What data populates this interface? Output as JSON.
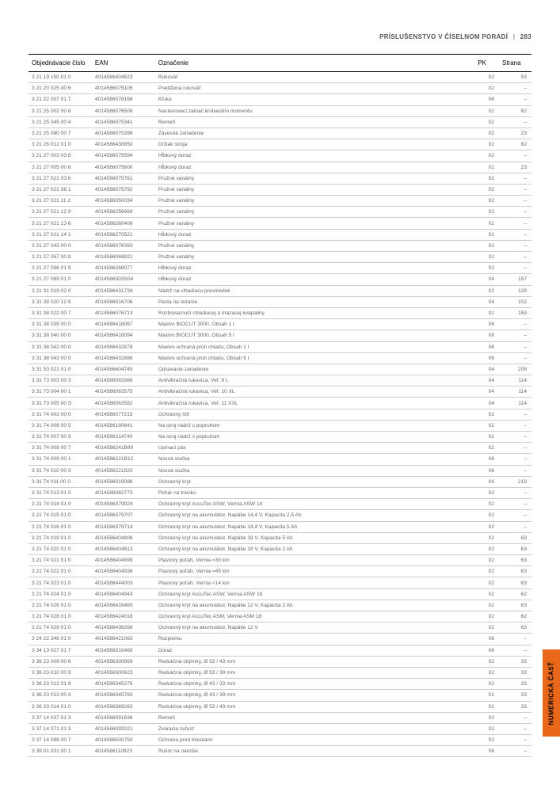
{
  "header": {
    "section": "PRÍSLUŠENSTVO V ČÍSELNOM PORADÍ",
    "divider": "|",
    "page_number": "283"
  },
  "side_tab": {
    "label": "NUMERICKÁ ČASŤ"
  },
  "table": {
    "columns": [
      "Objednávacie číslo",
      "EAN",
      "Označenie",
      "PK",
      "Strana"
    ],
    "rows": [
      [
        "3 21 19 150 01 0",
        "4014586404523",
        "Rukoväť",
        "02",
        "53"
      ],
      [
        "3 21 20 025 00 6",
        "4014586075105",
        "Predlžená rukoväť",
        "02",
        "–"
      ],
      [
        "3 21 22 007 01 7",
        "4014586078168",
        "Kľuka",
        "06",
        "–"
      ],
      [
        "3 21 25 002 00 6",
        "4014586076508",
        "Nastavovací zalnač krútiaceho momentu",
        "02",
        "62"
      ],
      [
        "3 21 25 045 00 4",
        "4014586075341",
        "Remeň",
        "02",
        "–"
      ],
      [
        "3 21 25 080 00 7",
        "4014586075396",
        "Závesné zariadenie",
        "02",
        "23"
      ],
      [
        "3 21 26 012 01 0",
        "4014586430850",
        "Držiak stroja",
        "02",
        "62"
      ],
      [
        "3 21 27 003 03 8",
        "4014586075594",
        "Hĺbkový doraz",
        "02",
        "–"
      ],
      [
        "3 21 27 005 00 6",
        "4014586075600",
        "Hĺbkový doraz",
        "02",
        "23"
      ],
      [
        "3 21 27 021 03 6",
        "4014586075761",
        "Pružné vanálny",
        "02",
        "–"
      ],
      [
        "3 21 27 021 08 1",
        "4014586075792",
        "Pružné vanálny",
        "02",
        "–"
      ],
      [
        "3 21 27 021 11 2",
        "4014586050034",
        "Pružné vanálny",
        "02",
        "–"
      ],
      [
        "3 21 27 021 12 9",
        "4014586256969",
        "Pružné vanálny",
        "02",
        "–"
      ],
      [
        "3 21 27 021 13 6",
        "4014586260409",
        "Pružné vanálny",
        "02",
        "–"
      ],
      [
        "3 21 27 021 14 1",
        "4014586270521",
        "Hĺbkový doraz",
        "02",
        "–"
      ],
      [
        "3 21 27 043 00 0",
        "4014586076393",
        "Pružné vanálny",
        "02",
        "–"
      ],
      [
        "3 21 27 057 00 8",
        "4014586068821",
        "Pružné vanálny",
        "02",
        "–"
      ],
      [
        "3 21 27 086 01 9",
        "4014586268077",
        "Hĺbkový doraz",
        "02",
        "–"
      ],
      [
        "3 21 27 089 01 0",
        "4014586303S04",
        "Hĺbkový doraz",
        "04",
        "157"
      ],
      [
        "3 21 31 019 02 0",
        "4014586431734",
        "Nádrž na chladiacu prestriedok",
        "02",
        "129"
      ],
      [
        "3 31 38 020 12 9",
        "4014586016706",
        "Pasta na rezanie",
        "04",
        "102"
      ],
      [
        "3 31 38 022 00 7",
        "4014586076713",
        "Rozbrjvacnočí chladiacej a mazacej kvapaliny",
        "02",
        "159"
      ],
      [
        "3 31 38 039 00 0",
        "4014586418067",
        "Maxlvo BIOCUT 3000, Obsah 1 l",
        "06",
        "–"
      ],
      [
        "3 31 38 040 00 0",
        "4014586418094",
        "Maxlvo BIOCUT 3000, Obsah 5 l",
        "06",
        "–"
      ],
      [
        "3 31 38 042 00 0",
        "4014586432878",
        "Maxlvo ochraná proti chladu, Obsah 1 l",
        "06",
        "–"
      ],
      [
        "3 31 38 043 00 0",
        "4014586432886",
        "Maxlvo ochraná proti chladu, Obsah 5 l",
        "06",
        "–"
      ],
      [
        "3 31 53 021 01 0",
        "4014586404745",
        "Odsávacie zariadenie",
        "04",
        "208"
      ],
      [
        "3 31 73 003 00 3",
        "4014586063366",
        "Antivibračná rukavica, Veľ. 9 L",
        "04",
        "114"
      ],
      [
        "3 31 73 004 00 1",
        "4014586063575",
        "Antivibračná rukavica, Veľ. 10 XL",
        "04",
        "114"
      ],
      [
        "3 31 73 005 00 S",
        "4014586063582",
        "Antivibračná rukavica, Veľ. 11 XXL",
        "04",
        "114"
      ],
      [
        "3 31 74 003 00 0",
        "4014586077215",
        "Ochranný štít",
        "02",
        "–"
      ],
      [
        "3 31 74 006 00 5",
        "4014586190641",
        "Na stroj nádrž s popruhom",
        "02",
        "–"
      ],
      [
        "3 31 74 007 00 9",
        "4014586214740",
        "Na stroj nádrž s popruhom",
        "02",
        "–"
      ],
      [
        "3 31 74 008 00 7",
        "4014586241B80",
        "Upínací pás",
        "02",
        "–"
      ],
      [
        "3 31 74 009 00 1",
        "4014586221B12",
        "Nosná slučka",
        "06",
        "–"
      ],
      [
        "3 31 74 010 00 3",
        "4014586221820",
        "Nosná slučka",
        "06",
        "–"
      ],
      [
        "3 31 74 011 00 0",
        "4014586019086",
        "Ochranný kryt",
        "04",
        "219"
      ],
      [
        "3 31 74 013 01 0",
        "4014586082773",
        "Pohár na triesku",
        "02",
        "–"
      ],
      [
        "3 21 74 014 01 0",
        "4014586379924",
        "Ochranný kryt AccuTec ASW, Vernia ASW 14",
        "02",
        "–"
      ],
      [
        "3 21 74 015 01 0",
        "4014586379707",
        "Ochranný kryt na akumulátor, Napätie 14,4 V, Kapacita 2,5 Ah",
        "02",
        "–"
      ],
      [
        "3 21 74 016 01 0",
        "4014586379714",
        "Ochranný kryt na akumulátor, Napätie 14,4 V, Kapacita 5 Ah",
        "02",
        "–"
      ],
      [
        "3 21 74 019 01 0",
        "4014586404806",
        "Ochranný kryt na akumulátor, Napätie 18 V, Kapacita 5 Ah",
        "02",
        "63"
      ],
      [
        "3 21 74 020 01 0",
        "4014586404813",
        "Ochranný kryt na akumulátor, Napätie 18 V, Kapacita 2 Ah",
        "02",
        "63"
      ],
      [
        "3 21 74 021 01 0",
        "4014586404899",
        "Plastový poťah, Vernia =30 km",
        "02",
        "63"
      ],
      [
        "3 21 74 022 01 0",
        "4014586404936",
        "Plastový poťah, Vernia =45 km",
        "02",
        "63"
      ],
      [
        "3 21 74 023 01 0",
        "4014586444003",
        "Plastový poťah, Vernia <14 km",
        "02",
        "63"
      ],
      [
        "3 21 74 024 01 0",
        "4014586404943",
        "Ochranný kryt AccuTec ASW, Vernia ASW 18",
        "02",
        "62"
      ],
      [
        "3 21 74 026 01 0",
        "4014586416465",
        "Ochranný kryt na akumulátor, Napätie 12 V, Kapacita 2 Ah",
        "02",
        "63"
      ],
      [
        "3 21 74 028 01 0",
        "4014586424018",
        "Ochranný kryt AccuTec ASM, Vernia ASM 18",
        "02",
        "62"
      ],
      [
        "3 21 74 029 01 0",
        "4014586436268",
        "Ochranný kryt na akumulátor, Napätie 12 V",
        "02",
        "63"
      ],
      [
        "3 24 22 346 01 0",
        "4014586421063",
        "Rozpierku",
        "06",
        "–"
      ],
      [
        "3 34 13 027 01 7",
        "4014586310468",
        "Doraz",
        "06",
        "–"
      ],
      [
        "3 36 23 009 00 6",
        "4014586300869",
        "Redukčná objímky, Ø 53 / 43 mm",
        "02",
        "33"
      ],
      [
        "3 36 23 010 00 9",
        "4014586300623",
        "Redukčná objímky, Ø 53 / 39 mm",
        "02",
        "33"
      ],
      [
        "3 36 23 012 01 9",
        "4014586345276",
        "Redukčná objímky, Ø 43 / 33 mm",
        "02",
        "33"
      ],
      [
        "3 36 23 013 00 4",
        "4014586345783",
        "Redukčná objímky, Ø 43 / 39 mm",
        "02",
        "33"
      ],
      [
        "3 36 23 014 01 0",
        "4014586369263",
        "Redukčná objímky, Ø 53 / 43 mm",
        "02",
        "33"
      ],
      [
        "3 37 14 037 01 3",
        "4014586091836",
        "Remeň",
        "02",
        "–"
      ],
      [
        "3 37 14 071 01 3",
        "4014586093021",
        "Zváracia čeľusť",
        "02",
        "–"
      ],
      [
        "3 37 14 088 00 7",
        "4014586500750",
        "Ochrana pred trieskami",
        "02",
        "–"
      ],
      [
        "3 39 01 031 00 1",
        "4014586110823",
        "Rušor na nánoše",
        "06",
        "–"
      ]
    ]
  },
  "colors": {
    "orange": "#e8671a",
    "row_border": "#cccccc",
    "text_muted": "#666666"
  }
}
